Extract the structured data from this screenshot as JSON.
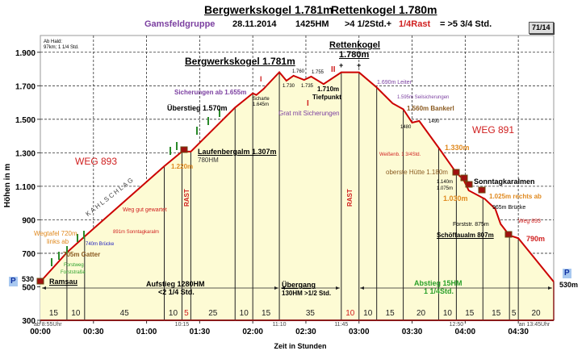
{
  "header": {
    "title_peak1": "Bergwerkskogel 1.781m",
    "title_peak2": "Rettenkogel 1.780m",
    "region": "Gamsfeldgruppe",
    "date": "28.11.2014",
    "hm": "1425HM",
    "time": ">4 1/2Std.+",
    "rast": "1/4Rast",
    "total": "= >5 3/4  Std.",
    "badge": "71/14"
  },
  "note": {
    "line1": "Ab Hald:",
    "line2": "97km; 1 1/4 Std."
  },
  "colors": {
    "profile": "#cc0000",
    "fill": "#fdfbd4",
    "grid": "#333333",
    "rast": "#d02020",
    "accent_purple": "#7b3fa0"
  },
  "chart_data": {
    "type": "area",
    "xlabel": "Zeit in Stunden",
    "ylabel": "Höhen in m",
    "xlim": [
      "00:00",
      "04:50"
    ],
    "ylim": [
      300,
      2000
    ],
    "x_ticks": [
      "00:00",
      "00:30",
      "01:00",
      "01:30",
      "02:00",
      "02:30",
      "03:00",
      "03:30",
      "04:00",
      "04:30"
    ],
    "y_ticks": [
      {
        "v": 1900,
        "label": "1.900"
      },
      {
        "v": 1700,
        "label": "1.700"
      },
      {
        "v": 1500,
        "label": "1.500"
      },
      {
        "v": 1300,
        "label": "1.300"
      },
      {
        "v": 1100,
        "label": "1.100"
      },
      {
        "v": 900,
        "label": "900"
      },
      {
        "v": 700,
        "label": "700"
      },
      {
        "v": 500,
        "label": "500"
      },
      {
        "v": 300,
        "label": "300"
      }
    ],
    "grid": true,
    "profile": [
      [
        "00:00",
        530
      ],
      [
        "00:15",
        705
      ],
      [
        "00:25",
        800
      ],
      [
        "01:10",
        1220
      ],
      [
        "01:20",
        1307
      ],
      [
        "01:25",
        1307
      ],
      [
        "01:50",
        1570
      ],
      [
        "02:00",
        1655
      ],
      [
        "02:02",
        1645
      ],
      [
        "02:06",
        1680
      ],
      [
        "02:15",
        1781
      ],
      [
        "02:19",
        1730
      ],
      [
        "02:23",
        1760
      ],
      [
        "02:29",
        1735
      ],
      [
        "02:33",
        1755
      ],
      [
        "02:40",
        1710
      ],
      [
        "02:50",
        1780
      ],
      [
        "03:00",
        1780
      ],
      [
        "03:10",
        1690
      ],
      [
        "03:19",
        1595
      ],
      [
        "03:25",
        1560
      ],
      [
        "03:30",
        1480
      ],
      [
        "03:34",
        1490
      ],
      [
        "03:45",
        1330
      ],
      [
        "03:55",
        1180
      ],
      [
        "03:59",
        1140
      ],
      [
        "04:02",
        1075
      ],
      [
        "04:10",
        1030
      ],
      [
        "04:11",
        1025
      ],
      [
        "04:17",
        965
      ],
      [
        "04:20",
        875
      ],
      [
        "04:25",
        807
      ],
      [
        "04:30",
        790
      ],
      [
        "04:50",
        530
      ]
    ],
    "segments": [
      {
        "min": 15,
        "label": "15"
      },
      {
        "min": 10,
        "label": "10"
      },
      {
        "min": 45,
        "label": "45"
      },
      {
        "min": 10,
        "label": "10"
      },
      {
        "min": 5,
        "label": "5",
        "rast": true
      },
      {
        "min": 25,
        "label": "25"
      },
      {
        "min": 10,
        "label": "10"
      },
      {
        "min": 15,
        "label": "15"
      },
      {
        "min": 35,
        "label": "35"
      },
      {
        "min": 10,
        "label": "10",
        "rast": true
      },
      {
        "min": 10,
        "label": "10"
      },
      {
        "min": 15,
        "label": "15"
      },
      {
        "min": 20,
        "label": "20"
      },
      {
        "min": 10,
        "label": "10"
      },
      {
        "min": 15,
        "label": "15"
      },
      {
        "min": 15,
        "label": "15"
      },
      {
        "min": 5,
        "label": "5"
      },
      {
        "min": 20,
        "label": "20"
      }
    ],
    "clock_labels": [
      {
        "t": "00:00",
        "label": "ab 8:55Uhr"
      },
      {
        "t": "01:20",
        "label": "10:15"
      },
      {
        "t": "02:15",
        "label": "11:10"
      },
      {
        "t": "02:50",
        "label": "11:45"
      },
      {
        "t": "03:55",
        "label": "12:50"
      },
      {
        "t": "04:50",
        "label": "an 13:45Uhr"
      }
    ]
  },
  "labels": {
    "peak1": "Bergwerkskogel  1.781m",
    "peak2_name": "Rettenkogel",
    "peak2_alt": "1.780m",
    "sicherungen": "Sicherungen ab 1.655m",
    "ueberstieg": "Überstieg 1.570m",
    "scharte": "Scharte",
    "scharte_alt": "1.645m",
    "p1760": "1.760",
    "p1755": "1.755",
    "p1730": "1.730",
    "p1735": "1.735",
    "p1710": "1.710m",
    "tiefpunkt": "Tiefpunkt",
    "grat": "Grat mit Sicherungen",
    "mark_i": "I",
    "mark_ii": "II",
    "plus": "+",
    "leiter": "1.690m Leiter",
    "seil": "1.595m Seilsicherungen",
    "bankerl": "1.560m Bankerl",
    "p1480": "1480",
    "p1490": "1490",
    "weg891": "WEG 891",
    "p1330": "1.330m",
    "weissenb": "Weißenb. 1 3/4Std.",
    "huette": "oberste Hütte 1.180m",
    "sonntag": "Sonntagkaralmen",
    "p1140": "1.140m",
    "p1075": "1.075m",
    "p1030": "1.030m",
    "p1025": "1.025m rechts ab",
    "bruecke965": "965m Brücke",
    "forststr": "Forststr. 875m",
    "schoeff": "Schöffaualm 807m",
    "weg893b": "Weg 893",
    "p790": "790m",
    "end530": "530m",
    "parking": "P",
    "weg893": "WEG 893",
    "kahlschlag": "KAHLSCHLAG",
    "laufen": "Laufenbergalm 1.307m",
    "hm780": "780HM",
    "p1220": "1.220m",
    "gewartet": "Weg gut gewartet",
    "sonntag891": "891m Sonntagkaralm",
    "wegtafel": "Wegtafel 720m",
    "linksab": "links ab",
    "bruecke740": "740m Brücke",
    "gatter": "705m Gatter",
    "forstweg": "Forstweg",
    "forststrasse": "Forststraße",
    "start530": "530",
    "ramsau": "Ramsau",
    "rast": "RAST",
    "aufstieg": "Aufstieg 1280HM",
    "aufstieg_t": "<2 1/4  Std.",
    "uebergang": "Übergang",
    "uebergang_t": "130HM >1/2  Std.",
    "abstieg": "Abstieg 15HM",
    "abstieg_t": "1 1/4Std."
  }
}
